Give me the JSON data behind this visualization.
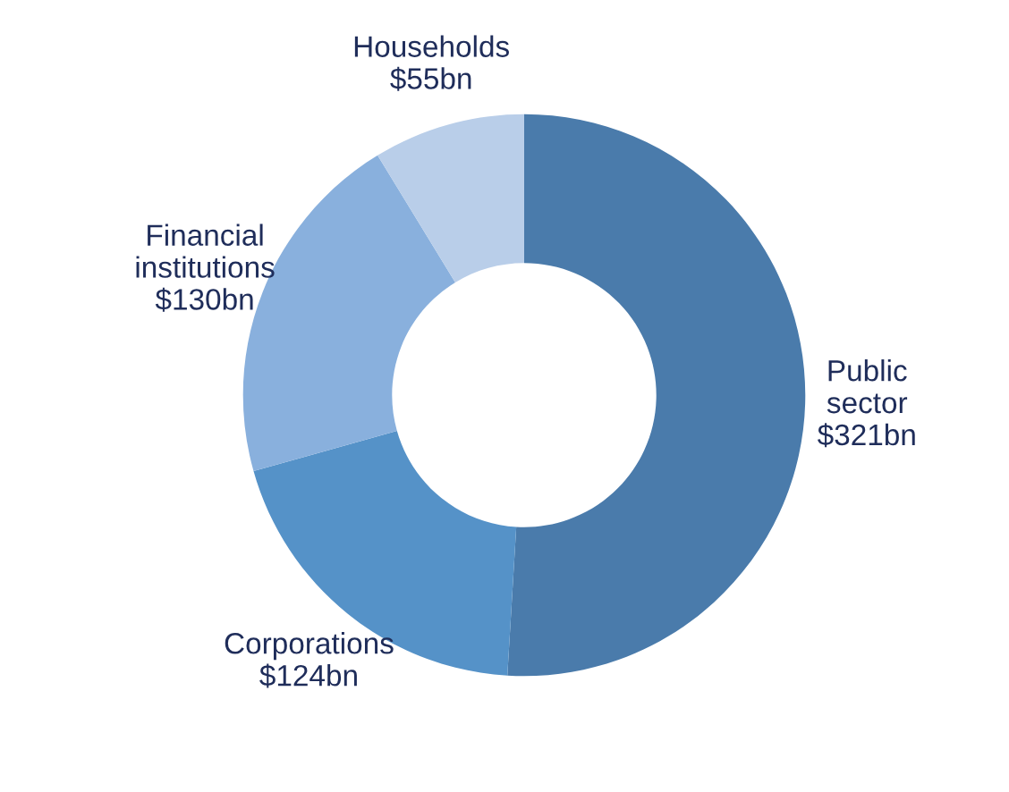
{
  "chart_data": {
    "type": "donut",
    "categories": [
      "Public\nsector",
      "Corporations",
      "Financial\ninstitutions",
      "Households"
    ],
    "values": [
      321,
      124,
      130,
      55
    ],
    "value_labels": [
      "$321bn",
      "$124bn",
      "$130bn",
      "$55bn"
    ],
    "colors": [
      "#4a7bab",
      "#5592c8",
      "#89b0dd",
      "#b9cee9"
    ]
  }
}
